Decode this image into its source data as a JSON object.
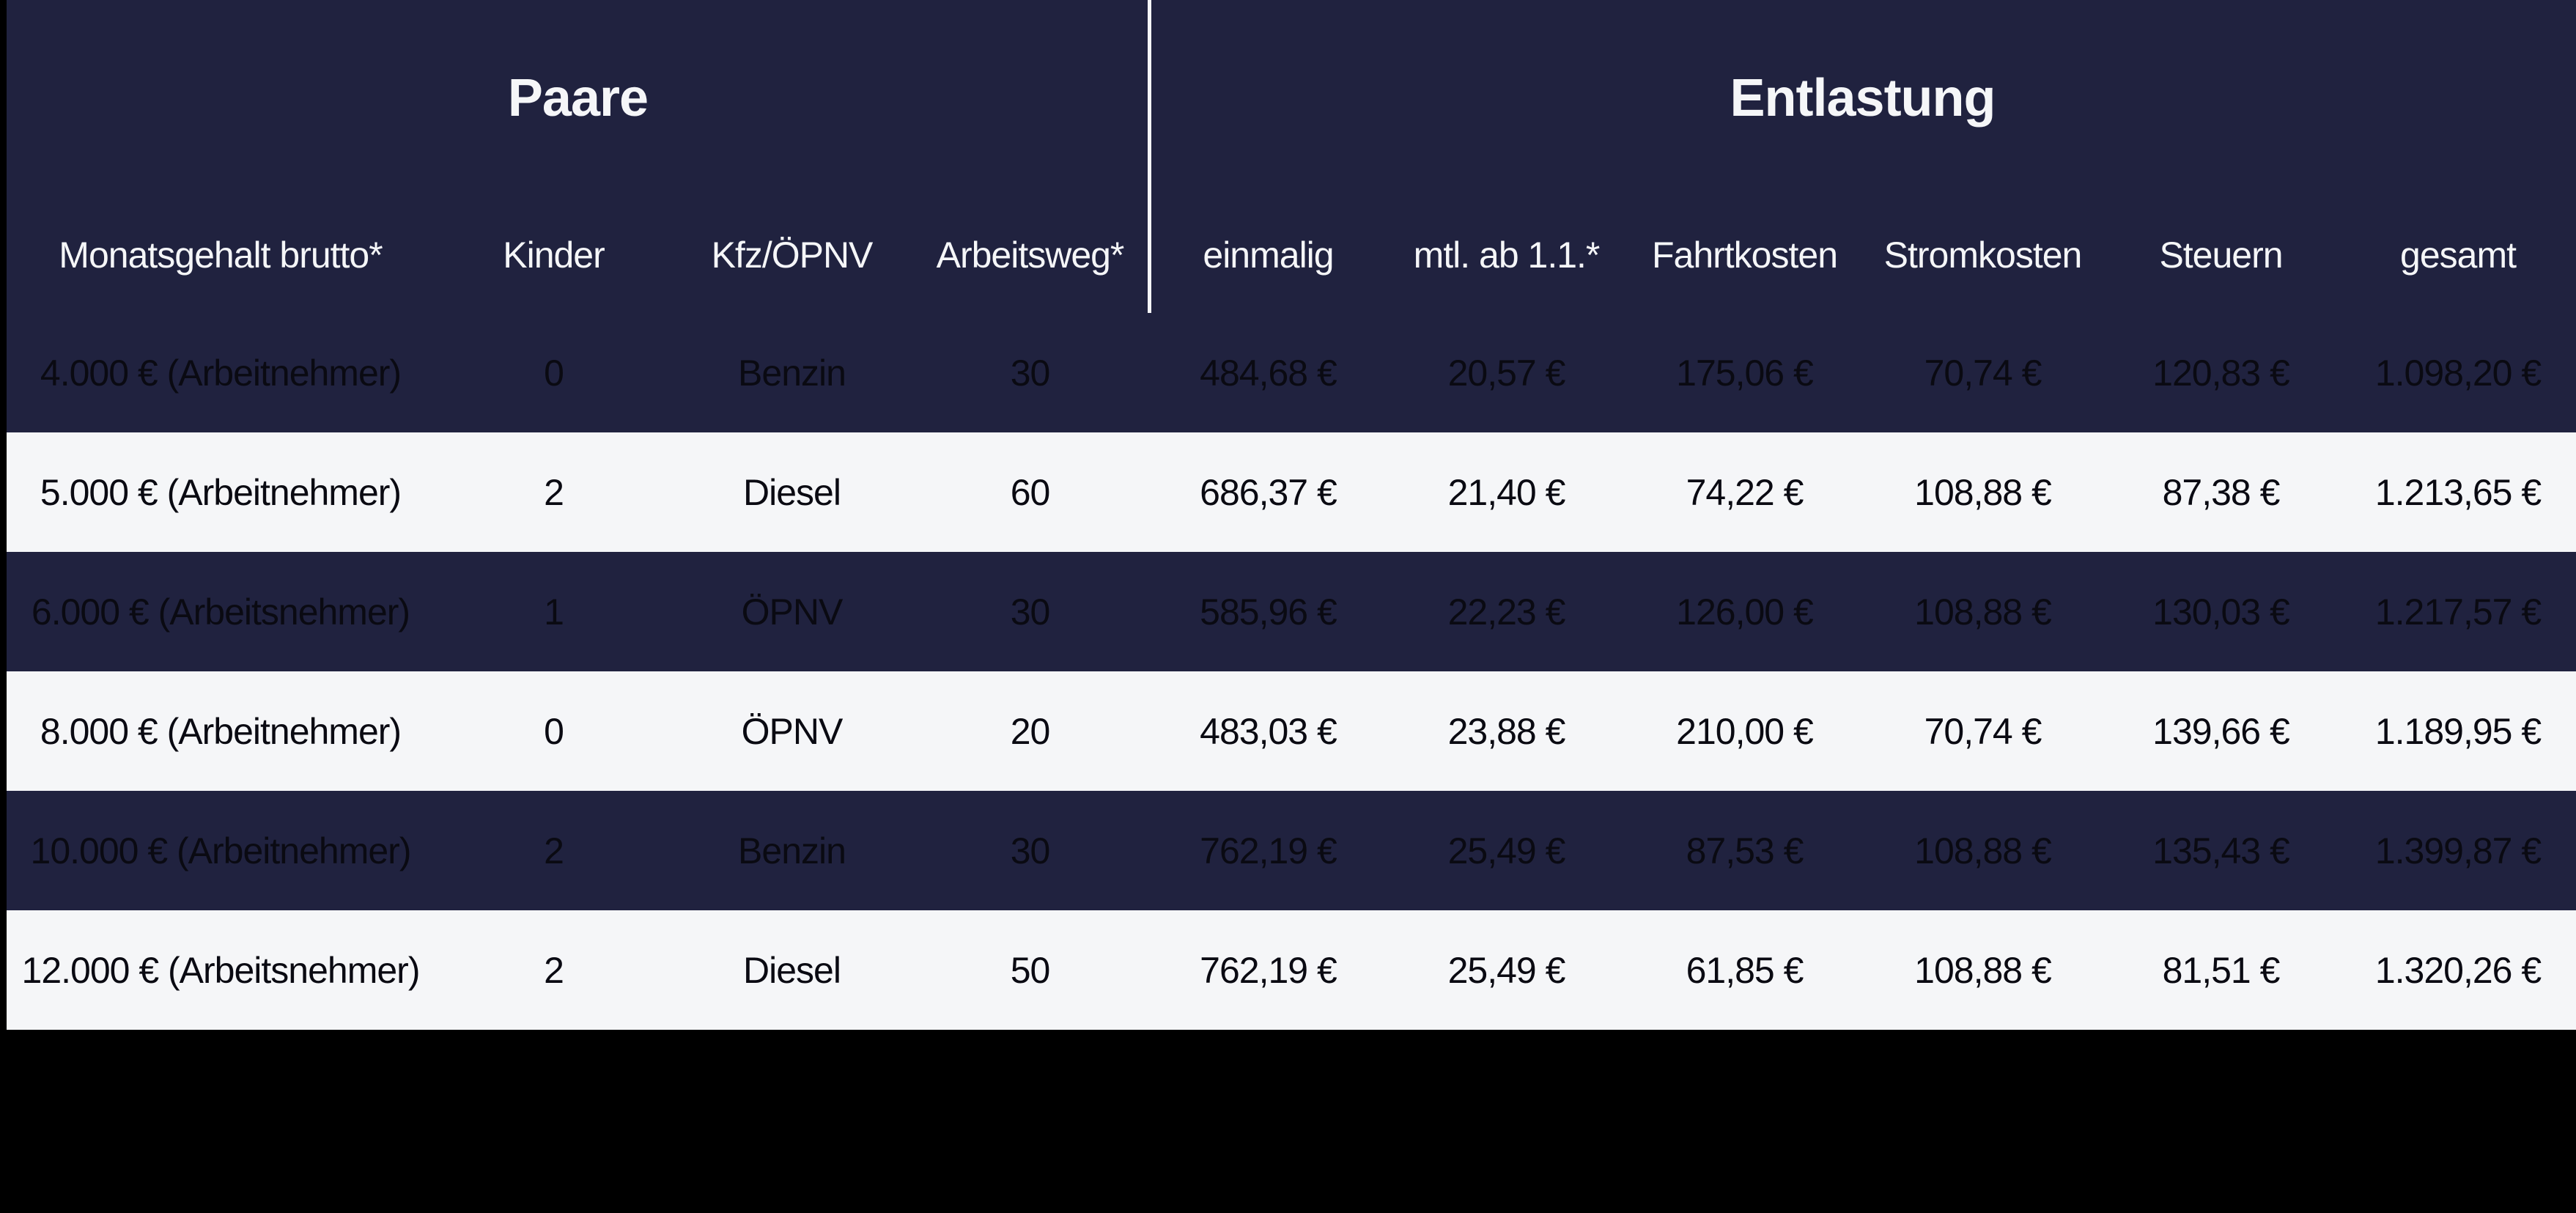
{
  "groups": {
    "left_title": "Paare",
    "right_title": "Entlastung"
  },
  "columns": [
    "Monatsgehalt brutto*",
    "Kinder",
    "Kfz/ÖPNV",
    "Arbeitsweg*",
    "einmalig",
    "mtl. ab 1.1.*",
    "Fahrtkosten",
    "Stromkosten",
    "Steuern",
    "gesamt"
  ],
  "rows": [
    [
      "4.000 € (Arbeitnehmer)",
      "0",
      "Benzin",
      "30",
      "484,68 €",
      "20,57 €",
      "175,06 €",
      "70,74 €",
      "120,83 €",
      "1.098,20 €"
    ],
    [
      "5.000 € (Arbeitnehmer)",
      "2",
      "Diesel",
      "60",
      "686,37 €",
      "21,40 €",
      "74,22 €",
      "108,88 €",
      "87,38 €",
      "1.213,65 €"
    ],
    [
      "6.000 € (Arbeitsnehmer)",
      "1",
      "ÖPNV",
      "30",
      "585,96 €",
      "22,23 €",
      "126,00 €",
      "108,88 €",
      "130,03 €",
      "1.217,57 €"
    ],
    [
      "8.000 € (Arbeitnehmer)",
      "0",
      "ÖPNV",
      "20",
      "483,03 €",
      "23,88 €",
      "210,00 €",
      "70,74 €",
      "139,66 €",
      "1.189,95 €"
    ],
    [
      "10.000 € (Arbeitnehmer)",
      "2",
      "Benzin",
      "30",
      "762,19 €",
      "25,49 €",
      "87,53 €",
      "108,88 €",
      "135,43 €",
      "1.399,87 €"
    ],
    [
      "12.000 € (Arbeitsnehmer)",
      "2",
      "Diesel",
      "50",
      "762,19 €",
      "25,49 €",
      "61,85 €",
      "108,88 €",
      "81,51 €",
      "1.320,26 €"
    ]
  ],
  "colors": {
    "dark_row": "#20223f",
    "light_row": "#f5f6f8",
    "header_text": "#f5f6f8",
    "cell_text": "#0a0a12"
  }
}
